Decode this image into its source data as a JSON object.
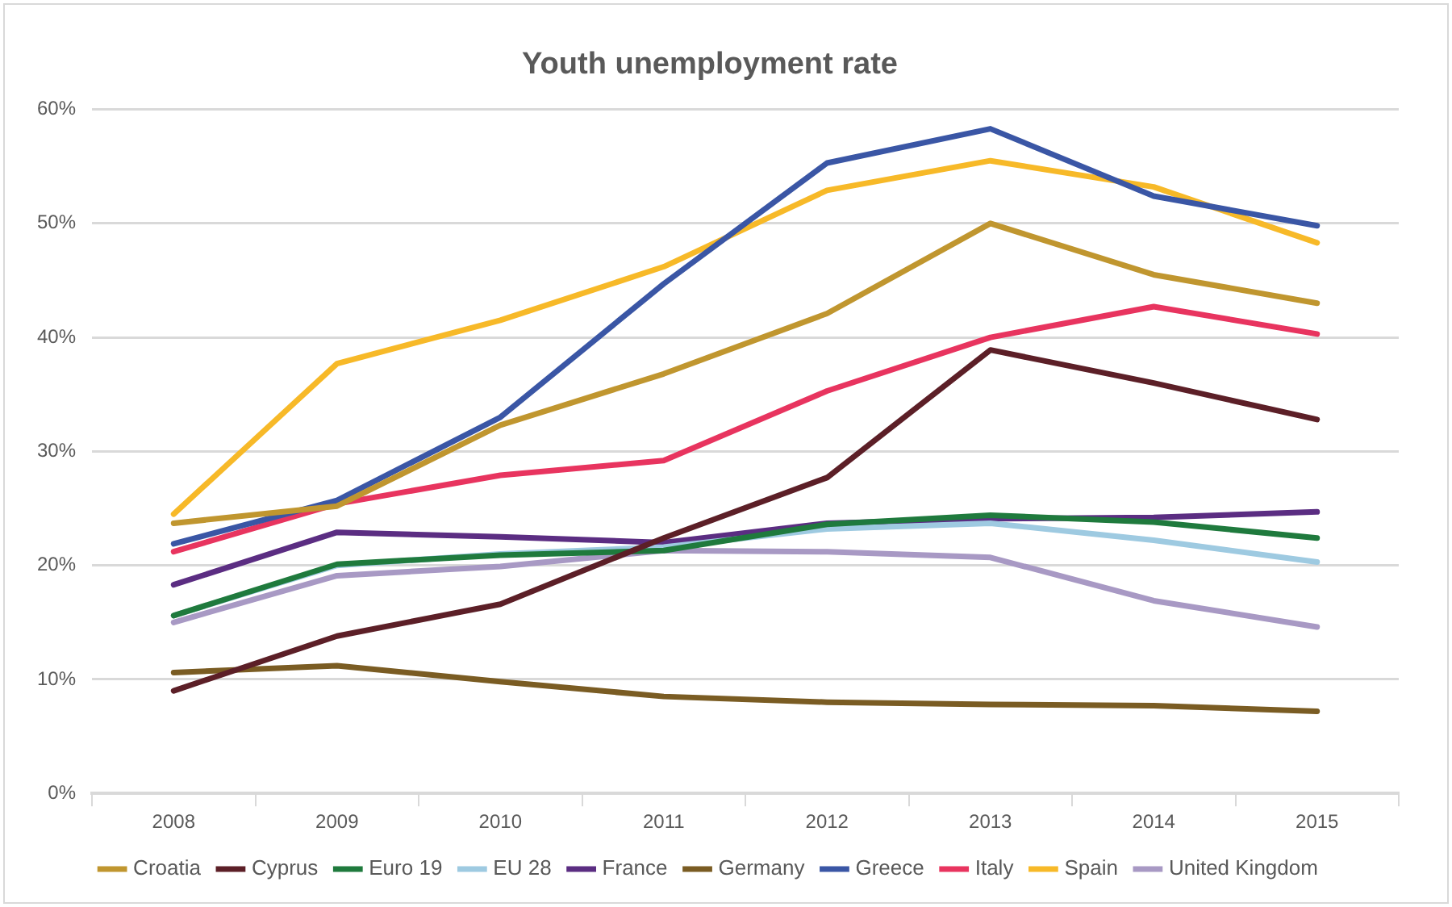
{
  "chart_data": {
    "type": "line",
    "title": "Youth unemployment rate",
    "categories": [
      "2008",
      "2009",
      "2010",
      "2011",
      "2012",
      "2013",
      "2014",
      "2015"
    ],
    "ylim": [
      0,
      60
    ],
    "yticks": [
      {
        "value": 0,
        "label": "0%"
      },
      {
        "value": 10,
        "label": "10%"
      },
      {
        "value": 20,
        "label": "20%"
      },
      {
        "value": 30,
        "label": "30%"
      },
      {
        "value": 40,
        "label": "40%"
      },
      {
        "value": 50,
        "label": "50%"
      },
      {
        "value": 60,
        "label": "60%"
      }
    ],
    "grid": "y",
    "legend": "bottom",
    "marker": "none",
    "line_style": "solid",
    "series": [
      {
        "name": "Croatia",
        "color": "#c0962f",
        "values": [
          23.7,
          25.2,
          32.3,
          36.8,
          42.1,
          50.0,
          45.5,
          43.0
        ]
      },
      {
        "name": "Cyprus",
        "color": "#5c1f27",
        "values": [
          9.0,
          13.8,
          16.6,
          22.4,
          27.7,
          38.9,
          36.0,
          32.8
        ]
      },
      {
        "name": "Euro 19",
        "color": "#1f7a3d",
        "values": [
          15.6,
          20.1,
          20.9,
          21.3,
          23.6,
          24.4,
          23.8,
          22.4
        ]
      },
      {
        "name": "EU 28",
        "color": "#9ecae1",
        "values": [
          15.6,
          20.0,
          21.0,
          21.6,
          23.2,
          23.7,
          22.2,
          20.3
        ]
      },
      {
        "name": "France",
        "color": "#5b2d82",
        "values": [
          18.3,
          22.9,
          22.5,
          22.0,
          23.7,
          24.1,
          24.2,
          24.7
        ]
      },
      {
        "name": "Germany",
        "color": "#7a5c23",
        "values": [
          10.6,
          11.2,
          9.8,
          8.5,
          8.0,
          7.8,
          7.7,
          7.2
        ]
      },
      {
        "name": "Greece",
        "color": "#3a56a5",
        "values": [
          21.9,
          25.7,
          33.0,
          44.7,
          55.3,
          58.3,
          52.4,
          49.8
        ]
      },
      {
        "name": "Italy",
        "color": "#e8345f",
        "values": [
          21.2,
          25.4,
          27.9,
          29.2,
          35.3,
          40.0,
          42.7,
          40.3
        ]
      },
      {
        "name": "Spain",
        "color": "#f7b928",
        "values": [
          24.5,
          37.7,
          41.5,
          46.2,
          52.9,
          55.5,
          53.2,
          48.3
        ]
      },
      {
        "name": "United Kingdom",
        "color": "#a899c4",
        "values": [
          15.0,
          19.1,
          19.9,
          21.3,
          21.2,
          20.7,
          16.9,
          14.6
        ]
      }
    ]
  }
}
